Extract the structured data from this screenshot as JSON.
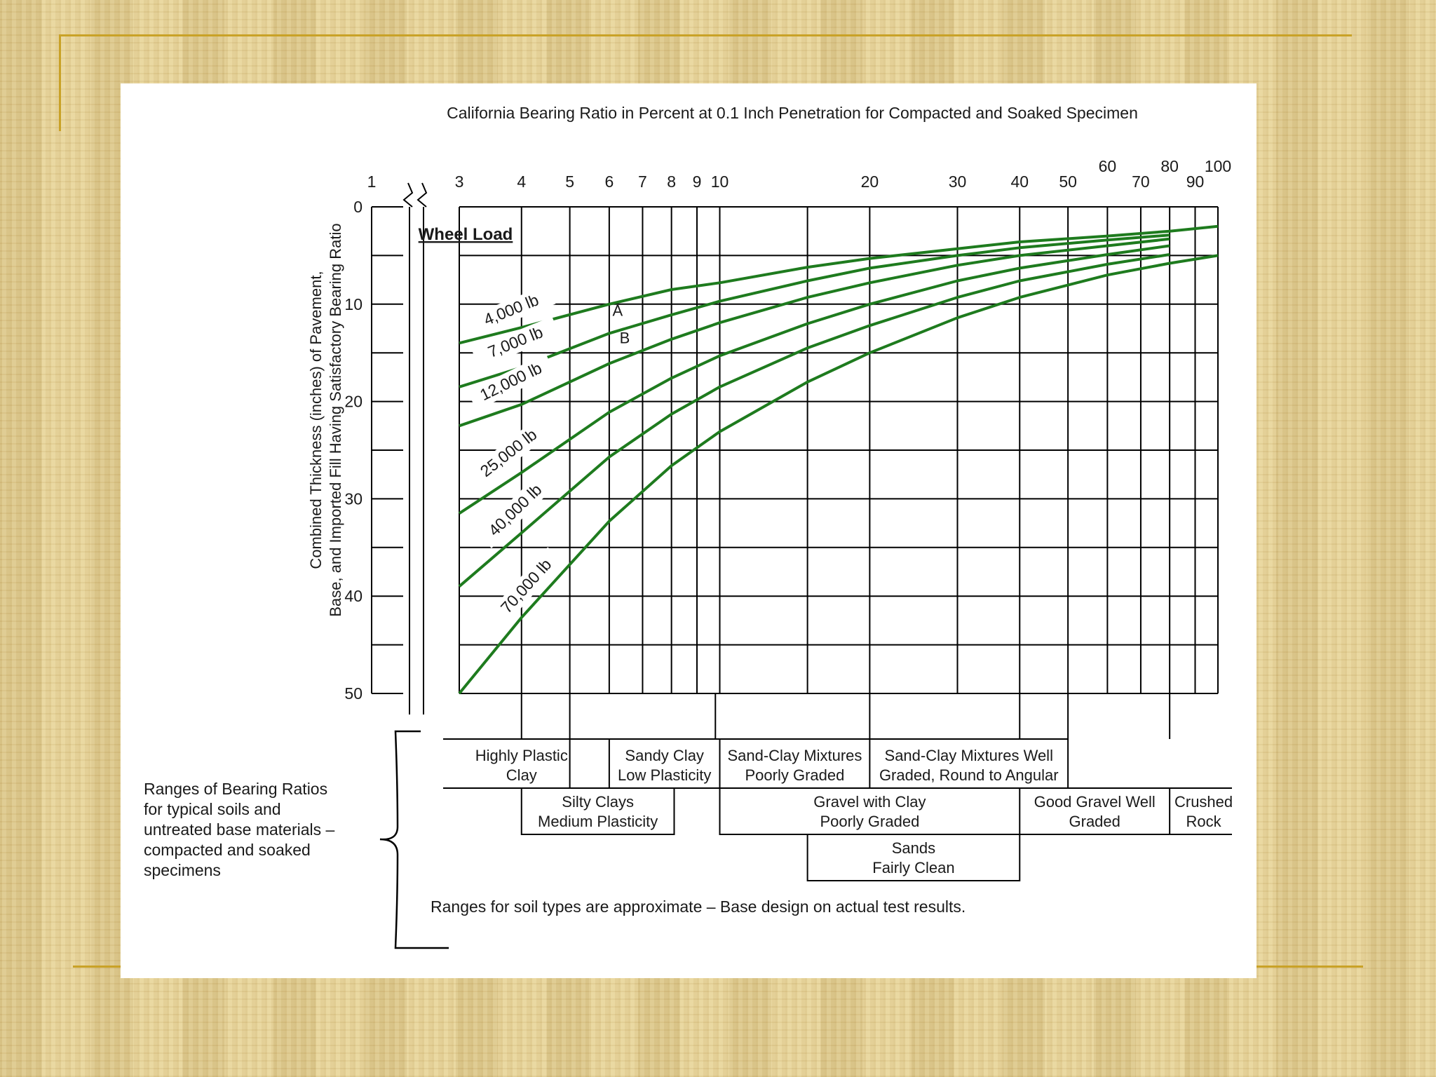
{
  "colors": {
    "background": "#e4d096",
    "accent_rule": "#c9a227",
    "panel": "#ffffff",
    "grid": "#000000",
    "curve": "#1e7b1e"
  },
  "chart_data": {
    "type": "line",
    "title": "California Bearing Ratio in Percent at 0.1 Inch Penetration for Compacted and Soaked Specimen",
    "ylabel_line1": "Combined Thickness (inches) of Pavement,",
    "ylabel_line2": "Base, and Imported Fill Having Satisfactory Bearing Ratio",
    "x_scale": "log",
    "xlim": [
      3,
      100
    ],
    "ylim": [
      0,
      50
    ],
    "y_inverted": true,
    "grid": true,
    "x_ticks": [
      {
        "v": 1,
        "label": "1"
      },
      {
        "v": 3,
        "label": "3"
      },
      {
        "v": 4,
        "label": "4"
      },
      {
        "v": 5,
        "label": "5"
      },
      {
        "v": 6,
        "label": "6"
      },
      {
        "v": 7,
        "label": "7"
      },
      {
        "v": 8,
        "label": "8"
      },
      {
        "v": 9,
        "label": "9"
      },
      {
        "v": 10,
        "label": "10"
      },
      {
        "v": 20,
        "label": "20"
      },
      {
        "v": 30,
        "label": "30"
      },
      {
        "v": 40,
        "label": "40"
      },
      {
        "v": 50,
        "label": "50"
      },
      {
        "v": 60,
        "label": "60"
      },
      {
        "v": 70,
        "label": "70"
      },
      {
        "v": 80,
        "label": "80"
      },
      {
        "v": 90,
        "label": "90"
      },
      {
        "v": 100,
        "label": "100"
      }
    ],
    "y_ticks": [
      {
        "v": 0,
        "label": "0"
      },
      {
        "v": 10,
        "label": "10"
      },
      {
        "v": 20,
        "label": "20"
      },
      {
        "v": 30,
        "label": "30"
      },
      {
        "v": 40,
        "label": "40"
      },
      {
        "v": 50,
        "label": "50"
      }
    ],
    "legend_title": "Wheel Load",
    "series": [
      {
        "name": "4,000 lb",
        "points": [
          [
            3,
            14
          ],
          [
            4,
            12.4
          ],
          [
            6,
            10
          ],
          [
            8,
            8.5
          ],
          [
            10,
            7.8
          ],
          [
            15,
            6.2
          ],
          [
            20,
            5.3
          ],
          [
            30,
            4.3
          ],
          [
            40,
            3.6
          ],
          [
            60,
            3
          ],
          [
            80,
            2.5
          ],
          [
            100,
            2
          ]
        ]
      },
      {
        "name": "7,000 lb",
        "points": [
          [
            3,
            18.5
          ],
          [
            4,
            16.5
          ],
          [
            6,
            13
          ],
          [
            8,
            11.1
          ],
          [
            10,
            9.7
          ],
          [
            15,
            7.6
          ],
          [
            20,
            6.3
          ],
          [
            30,
            5
          ],
          [
            40,
            4.2
          ],
          [
            60,
            3.4
          ],
          [
            80,
            2.9
          ]
        ]
      },
      {
        "name": "12,000 lb",
        "points": [
          [
            3,
            22.5
          ],
          [
            4,
            20.3
          ],
          [
            6,
            16.1
          ],
          [
            8,
            13.6
          ],
          [
            10,
            11.9
          ],
          [
            15,
            9.3
          ],
          [
            20,
            7.8
          ],
          [
            30,
            6
          ],
          [
            40,
            5
          ],
          [
            60,
            4
          ],
          [
            80,
            3.3
          ]
        ]
      },
      {
        "name": "25,000 lb",
        "points": [
          [
            3,
            31.5
          ],
          [
            4,
            27.3
          ],
          [
            6,
            21.1
          ],
          [
            8,
            17.6
          ],
          [
            10,
            15.3
          ],
          [
            15,
            12
          ],
          [
            20,
            10
          ],
          [
            30,
            7.6
          ],
          [
            40,
            6.3
          ],
          [
            60,
            4.9
          ],
          [
            80,
            4
          ]
        ]
      },
      {
        "name": "40,000 lb",
        "points": [
          [
            3,
            39
          ],
          [
            4,
            33.5
          ],
          [
            6,
            25.7
          ],
          [
            8,
            21.3
          ],
          [
            10,
            18.5
          ],
          [
            15,
            14.5
          ],
          [
            20,
            12.2
          ],
          [
            30,
            9.3
          ],
          [
            40,
            7.6
          ],
          [
            60,
            5.9
          ],
          [
            80,
            4.9
          ]
        ]
      },
      {
        "name": "70,000 lb",
        "points": [
          [
            3,
            50
          ],
          [
            4,
            42.2
          ],
          [
            6,
            32.3
          ],
          [
            8,
            26.6
          ],
          [
            10,
            23.1
          ],
          [
            15,
            18
          ],
          [
            20,
            15
          ],
          [
            30,
            11.4
          ],
          [
            40,
            9.3
          ],
          [
            60,
            7
          ],
          [
            80,
            5.8
          ],
          [
            100,
            5
          ]
        ]
      }
    ],
    "annotations": [
      {
        "text": "A",
        "x": 6,
        "y": 11.2
      },
      {
        "text": "B",
        "x": 6.2,
        "y": 14
      }
    ],
    "soil_ranges_title": "Ranges of Bearing Ratios for typical soils and untreated base materials – compacted and soaked specimens",
    "soil_ranges": [
      {
        "label": "Highly Plastic Clay",
        "from": 3,
        "to": 5
      },
      {
        "label": "Silty Clays Medium Plasticity",
        "from": 4,
        "to": 8
      },
      {
        "label": "Sandy Clay Low Plasticity",
        "from": 6,
        "to": 10
      },
      {
        "label": "Sand-Clay Mixtures Poorly Graded",
        "from": 10,
        "to": 20
      },
      {
        "label": "Sand-Clay Mixtures Well Graded, Round to Angular",
        "from": 20,
        "to": 50
      },
      {
        "label": "Gravel with Clay Poorly Graded",
        "from": 10,
        "to": 40
      },
      {
        "label": "Good Gravel Well Graded",
        "from": 40,
        "to": 80
      },
      {
        "label": "Crushed Rock",
        "from": 80,
        "to": 100
      },
      {
        "label": "Sands Fairly Clean",
        "from": 15,
        "to": 40
      }
    ],
    "footnote": "Ranges for soil types are approximate – Base design on actual test results."
  },
  "soil_box_lines": {
    "highly_plastic_clay": [
      "Highly Plastic",
      "Clay"
    ],
    "silty_clays": [
      "Silty Clays",
      "Medium Plasticity"
    ],
    "sandy_clay": [
      "Sandy Clay",
      "Low Plasticity"
    ],
    "sand_clay_poor": [
      "Sand-Clay Mixtures",
      "Poorly Graded"
    ],
    "sand_clay_well": [
      "Sand-Clay Mixtures Well",
      "Graded, Round to Angular"
    ],
    "gravel_clay": [
      "Gravel with Clay",
      "Poorly Graded"
    ],
    "good_gravel": [
      "Good Gravel Well",
      "Graded"
    ],
    "crushed_rock": [
      "Crushed",
      "Rock"
    ],
    "sands": [
      "Sands",
      "Fairly Clean"
    ]
  },
  "ranges_caption_lines": [
    "Ranges of Bearing Ratios",
    "for typical soils and",
    "untreated base materials –",
    "compacted and soaked",
    "specimens"
  ]
}
